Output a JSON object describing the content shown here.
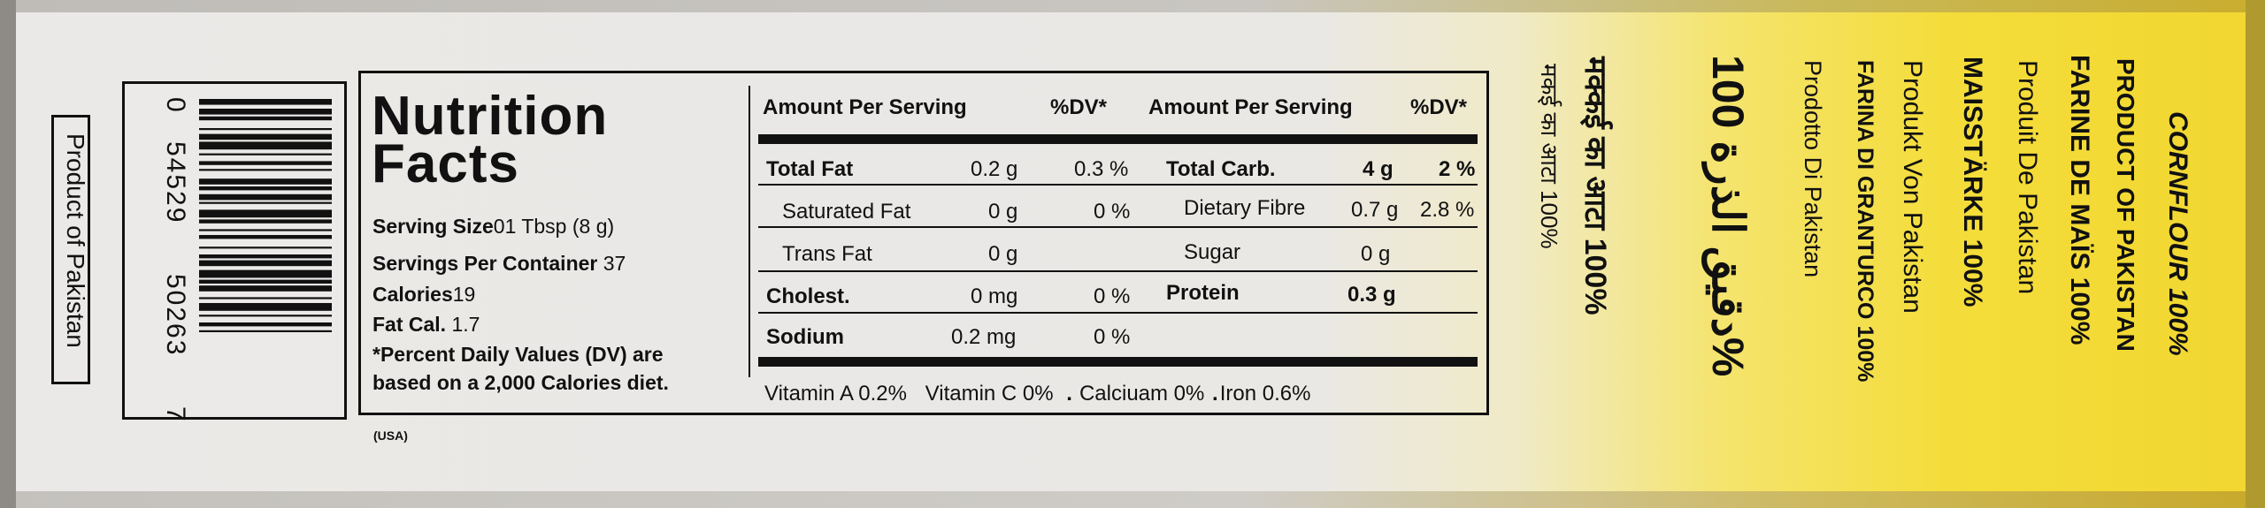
{
  "panel": {
    "product_of_label": "Product of Pakistan",
    "barcode_digits": [
      "0",
      "54529",
      "50263",
      "7"
    ],
    "usa_mark": "(USA)"
  },
  "nutrition": {
    "title_line1": "Nutrition",
    "title_line2": "Facts",
    "serving_size_label": "Serving Size",
    "serving_size_value": "01 Tbsp (8 g)",
    "servings_per_label": "Servings Per  Container",
    "servings_per_value": "37",
    "calories_label": "Calories",
    "calories_value": "19",
    "fat_cal_label": "Fat Cal.",
    "fat_cal_value": "1.7",
    "dv_note_line1": "*Percent Daily Values (DV) are",
    "dv_note_line2": "based on a 2,000 Calories diet.",
    "headers": {
      "amount_1": "Amount Per Serving",
      "dv_1": "%DV*",
      "amount_2": "Amount Per Serving",
      "dv_2": "%DV*"
    },
    "rows_left": [
      {
        "label": "Total Fat",
        "amount": "0.2 g",
        "dv": "0.3 %"
      },
      {
        "label": "Saturated Fat",
        "amount": "0 g",
        "dv": "0 %"
      },
      {
        "label": "Trans Fat",
        "amount": "0 g",
        "dv": ""
      },
      {
        "label": "Cholest.",
        "amount": "0 mg",
        "dv": "0 %"
      },
      {
        "label": "Sodium",
        "amount": "0.2 mg",
        "dv": "0 %"
      }
    ],
    "rows_right": [
      {
        "label": "Total Carb.",
        "amount": "4 g",
        "dv": "2 %"
      },
      {
        "label": "Dietary Fibre",
        "amount": "0.7 g",
        "dv": "2.8 %"
      },
      {
        "label": "Sugar",
        "amount": "0 g",
        "dv": ""
      },
      {
        "label": "Protein",
        "amount": "0.3 g",
        "dv": ""
      }
    ],
    "vitamins": {
      "vitamin_a": "Vitamin A  0.2%",
      "vitamin_c": "Vitamin C  0%",
      "calcium": "Calciuam  0%",
      "iron": "Iron 0.6%"
    }
  },
  "product_names": {
    "hindi_1": "मक्कई  का  आटा 100%",
    "hindi_2": "मकई  का  आटा 100%",
    "arabic": "دقيق الذرة 100%",
    "farina": "FARINA DI GRANTURCO 100%",
    "prodotto": "Prodotto Di Pakistan",
    "produkt": "Produkt Von Pakistan",
    "maisstarke": "MAISSTÄRKE 100%",
    "produit": "Produit De Pakistan",
    "farine": "FARINE DE MAÏS 100%",
    "product_of_pk": "PRODUCT OF PAKISTAN",
    "cornflour": "CORNFLOUR 100%"
  },
  "colors": {
    "panel_white": "#ebe9e7",
    "pack_yellow": "#f4dd3a",
    "ink": "#111111"
  }
}
